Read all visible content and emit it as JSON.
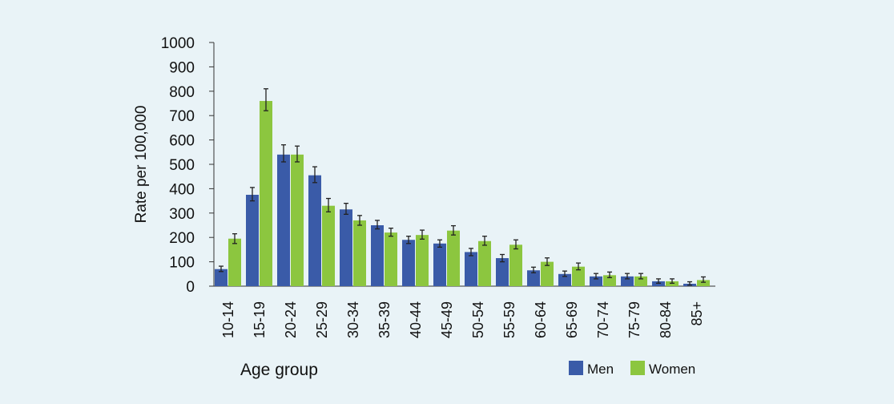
{
  "chart_data": {
    "type": "bar",
    "title": "",
    "xlabel": "Age group",
    "ylabel": "Rate per 100,000",
    "ylim": [
      0,
      1000
    ],
    "yticks": [
      0,
      100,
      200,
      300,
      400,
      500,
      600,
      700,
      800,
      900,
      1000
    ],
    "grid": false,
    "legend_position": "bottom-right",
    "categories": [
      "10-14",
      "15-19",
      "20-24",
      "25-29",
      "30-34",
      "35-39",
      "40-44",
      "45-49",
      "50-54",
      "55-59",
      "60-64",
      "65-69",
      "70-74",
      "75-79",
      "80-84",
      "85+"
    ],
    "series": [
      {
        "name": "Men",
        "color": "#3a5ba8",
        "values": [
          70,
          375,
          540,
          455,
          315,
          250,
          190,
          175,
          140,
          115,
          65,
          50,
          40,
          40,
          20,
          10
        ],
        "error_low": [
          60,
          350,
          510,
          425,
          295,
          235,
          175,
          160,
          125,
          100,
          55,
          40,
          30,
          30,
          12,
          4
        ],
        "error_high": [
          82,
          405,
          580,
          490,
          340,
          270,
          205,
          190,
          155,
          130,
          78,
          62,
          52,
          52,
          30,
          18
        ]
      },
      {
        "name": "Women",
        "color": "#8cc63f",
        "values": [
          195,
          760,
          540,
          330,
          270,
          220,
          210,
          228,
          185,
          170,
          100,
          80,
          45,
          40,
          20,
          25
        ],
        "error_low": [
          175,
          720,
          510,
          305,
          250,
          205,
          193,
          210,
          168,
          153,
          85,
          67,
          35,
          30,
          12,
          16
        ],
        "error_high": [
          215,
          810,
          575,
          360,
          290,
          238,
          230,
          248,
          205,
          190,
          116,
          95,
          58,
          52,
          30,
          38
        ]
      }
    ]
  }
}
